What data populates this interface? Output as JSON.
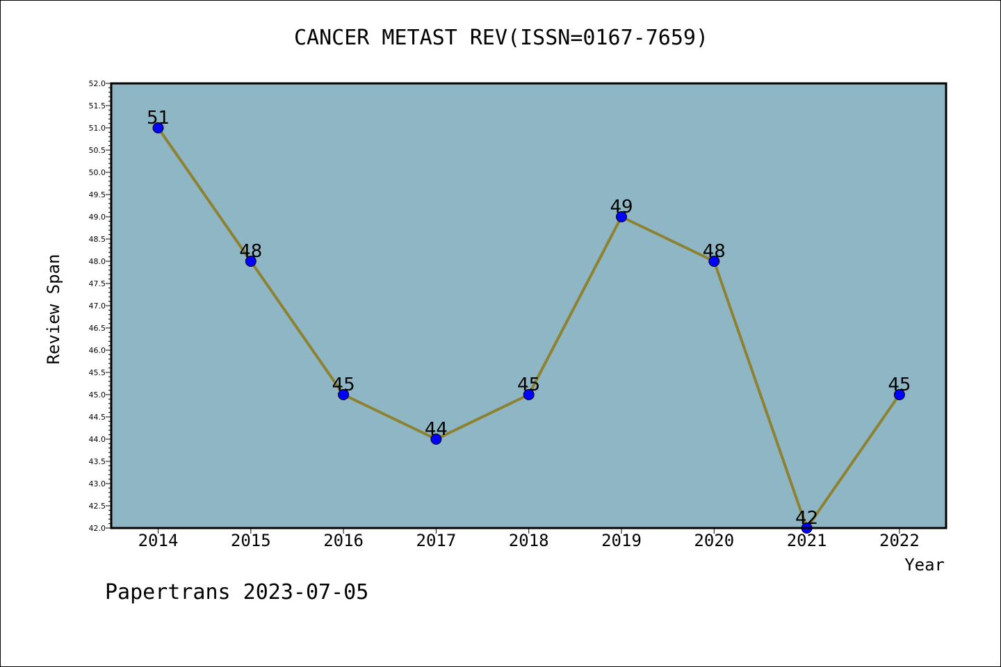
{
  "chart_data": {
    "type": "line",
    "title": "CANCER METAST REV(ISSN=0167-7659)",
    "xlabel": "Year",
    "ylabel": "Review Span",
    "categories": [
      "2014",
      "2015",
      "2016",
      "2017",
      "2018",
      "2019",
      "2020",
      "2021",
      "2022"
    ],
    "values": [
      51,
      48,
      45,
      44,
      45,
      49,
      48,
      42,
      45
    ],
    "data_labels": [
      "51",
      "48",
      "45",
      "44",
      "45",
      "49",
      "48",
      "42",
      "45"
    ],
    "ylim": [
      42.0,
      52.0
    ],
    "yticks": [
      "42.0",
      "42.5",
      "43.0",
      "43.5",
      "44.0",
      "44.5",
      "45.0",
      "45.5",
      "46.0",
      "46.5",
      "47.0",
      "47.5",
      "48.0",
      "48.5",
      "49.0",
      "49.5",
      "50.0",
      "50.5",
      "51.0",
      "51.5",
      "52.0"
    ],
    "grid": false,
    "colors": {
      "plot_background": "#8fb6c4",
      "line": "#8c8232",
      "marker": "#0000ff"
    }
  },
  "footer": "Papertrans 2023-07-05"
}
